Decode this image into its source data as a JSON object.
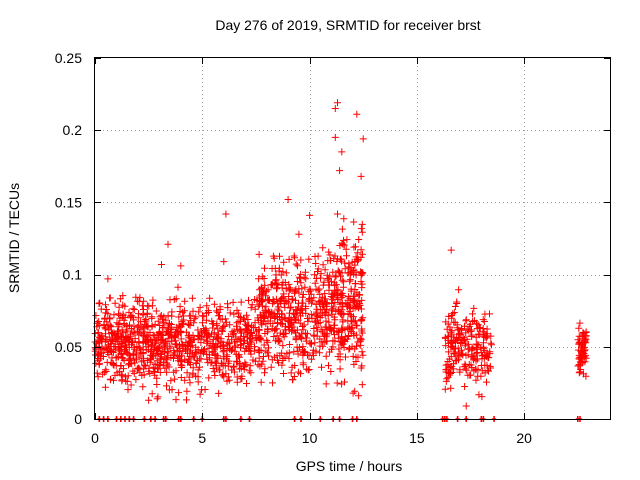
{
  "chart_data": {
    "type": "scatter",
    "title": "Day 276 of 2019, SRMTID for receiver brst",
    "xlabel": "GPS time / hours",
    "ylabel": "SRMTID / TECUs",
    "xlim": [
      0,
      24
    ],
    "ylim": [
      0,
      0.25
    ],
    "grid": true,
    "legend": "none",
    "marker": "plus",
    "color": "#ff0000",
    "x_ticks": [
      0,
      5,
      10,
      15,
      20
    ],
    "y_ticks": [
      0,
      0.05,
      0.1,
      0.15,
      0.2,
      0.25
    ],
    "x_tick_labels": [
      "0",
      "5",
      "10",
      "15",
      "20"
    ],
    "y_tick_labels": [
      "0",
      "0.05",
      "0.1",
      "0.15",
      "0.2",
      "0.25"
    ],
    "segments": [
      {
        "start": 0.0,
        "end": 7.6,
        "center": 0.052,
        "spread": 0.016,
        "count": 900
      },
      {
        "start": 7.6,
        "end": 10.8,
        "center": 0.072,
        "spread": 0.022,
        "count": 420
      },
      {
        "start": 10.8,
        "end": 12.5,
        "center": 0.078,
        "spread": 0.03,
        "count": 280
      },
      {
        "start": 16.3,
        "end": 18.5,
        "center": 0.05,
        "spread": 0.016,
        "count": 220
      },
      {
        "start": 22.5,
        "end": 22.9,
        "center": 0.047,
        "spread": 0.01,
        "count": 70
      }
    ],
    "outliers": [
      {
        "x": 11.3,
        "y": 0.219
      },
      {
        "x": 11.2,
        "y": 0.215
      },
      {
        "x": 12.2,
        "y": 0.211
      },
      {
        "x": 11.2,
        "y": 0.195
      },
      {
        "x": 12.5,
        "y": 0.194
      },
      {
        "x": 11.5,
        "y": 0.185
      },
      {
        "x": 11.4,
        "y": 0.172
      },
      {
        "x": 12.4,
        "y": 0.168
      },
      {
        "x": 9.0,
        "y": 0.152
      },
      {
        "x": 11.3,
        "y": 0.142
      },
      {
        "x": 6.1,
        "y": 0.142
      },
      {
        "x": 10.0,
        "y": 0.141
      },
      {
        "x": 9.5,
        "y": 0.128
      },
      {
        "x": 3.4,
        "y": 0.121
      },
      {
        "x": 16.6,
        "y": 0.117
      },
      {
        "x": 3.1,
        "y": 0.107
      },
      {
        "x": 6.0,
        "y": 0.109
      },
      {
        "x": 17.3,
        "y": 0.009
      },
      {
        "x": 2.5,
        "y": 0.013
      },
      {
        "x": 2.9,
        "y": 0.014
      },
      {
        "x": 0.6,
        "y": 0.097
      },
      {
        "x": 4.0,
        "y": 0.106
      }
    ],
    "baseline_marks": [
      0.2,
      0.4,
      0.6,
      1.0,
      1.2,
      1.4,
      1.6,
      1.8,
      2.3,
      2.6,
      2.8,
      3.2,
      3.3,
      3.9,
      4.0,
      4.6,
      5.0,
      6.0,
      6.1,
      6.8,
      7.2,
      9.3,
      9.6,
      10.5,
      11.1,
      11.4,
      12.0,
      12.2,
      16.2,
      16.3,
      16.4,
      16.9,
      17.3,
      18.0,
      18.1,
      18.6,
      22.5,
      22.6
    ]
  }
}
